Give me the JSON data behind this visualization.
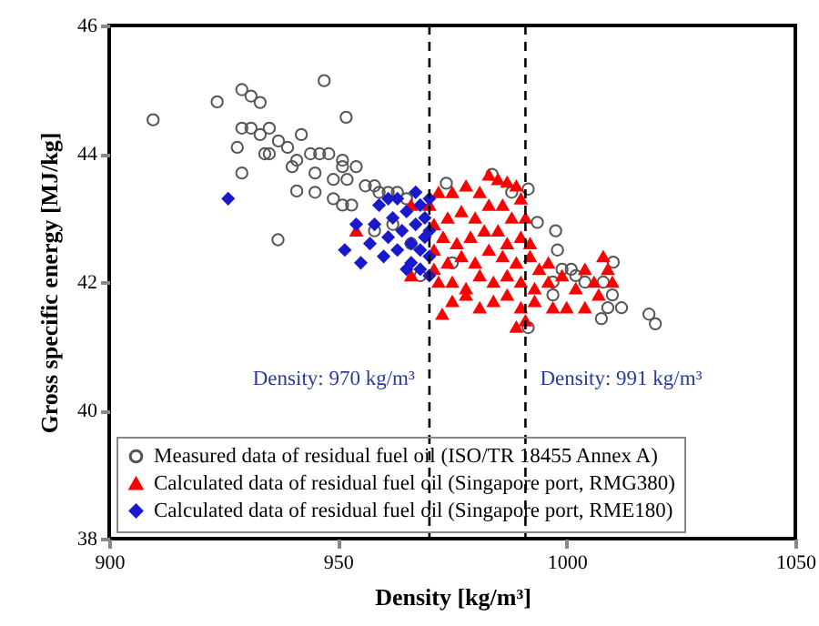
{
  "chart_data": {
    "type": "scatter",
    "xlabel": "Density [kg/m³]",
    "ylabel": "Gross specific energy [MJ/kg]",
    "xlim": [
      900,
      1050
    ],
    "xticks": [
      900,
      950,
      1000,
      1050
    ],
    "ylim": [
      38,
      46
    ],
    "yticks": [
      38,
      40,
      42,
      44,
      46
    ],
    "grid": false,
    "legend": "bottom",
    "ref_lines": [
      {
        "axis": "x",
        "value": 970,
        "label": "Density: 970 kg/m³",
        "line_style": "dashed",
        "color": "#000000"
      },
      {
        "axis": "x",
        "value": 991,
        "label": "Density: 991 kg/m³",
        "line_style": "dashed",
        "color": "#000000"
      }
    ],
    "series": [
      {
        "name": "Measured data of residual fuel oil (ISO/TR 18455 Annex A)",
        "color": "#555555",
        "marker": "circle",
        "x": [
          909.6,
          923.6,
          929,
          931,
          933,
          947,
          951.8,
          929,
          931,
          933,
          935,
          928,
          934,
          937,
          939,
          942,
          929,
          935,
          940,
          941,
          944,
          946,
          948,
          951,
          951,
          954,
          945,
          949,
          951,
          953,
          945,
          949,
          952,
          956,
          958,
          959,
          961,
          963,
          965,
          941,
          936.9,
          958,
          962,
          966,
          973.7,
          983.7,
          988,
          991.6,
          993.6,
          997.6,
          998,
          999,
          1001,
          1002,
          997,
          997,
          1004,
          1008,
          1010.2,
          1010,
          1009,
          1012,
          1007.6,
          1018,
          1019.4,
          991.6,
          975,
          968
        ],
        "values": [
          44.53,
          44.81,
          45.0,
          44.9,
          44.8,
          45.14,
          44.57,
          44.4,
          44.4,
          44.3,
          44.4,
          44.1,
          44.0,
          44.2,
          44.1,
          44.3,
          43.7,
          44.0,
          43.8,
          43.9,
          44.0,
          44.0,
          44.0,
          43.9,
          43.8,
          43.8,
          43.4,
          43.3,
          43.2,
          43.2,
          43.7,
          43.6,
          43.6,
          43.5,
          43.5,
          43.4,
          43.4,
          43.4,
          43.3,
          43.42,
          42.66,
          42.8,
          42.9,
          42.6,
          43.54,
          43.68,
          43.4,
          43.45,
          42.93,
          42.8,
          42.5,
          42.2,
          42.2,
          42.1,
          42.0,
          41.8,
          42.0,
          42.0,
          42.31,
          41.8,
          41.6,
          41.6,
          41.43,
          41.5,
          41.35,
          41.29,
          42.3,
          42.1
        ]
      },
      {
        "name": "Calculated data of residual fuel oil (Singapore port, RMG380)",
        "color": "#ff0000",
        "marker": "triangle",
        "x": [
          970,
          972,
          975,
          978,
          981,
          983,
          985,
          987,
          989,
          990,
          971,
          974,
          977,
          980,
          983,
          986,
          988,
          991,
          971,
          973,
          976,
          979,
          982,
          985,
          987,
          990,
          992,
          971,
          974,
          977,
          980,
          983,
          986,
          989,
          992,
          994,
          972,
          975,
          978,
          981,
          984,
          987,
          990,
          993,
          996,
          975,
          978,
          981,
          984,
          987,
          990,
          993,
          997,
          989,
          991,
          972.8,
          966,
          954,
          966,
          996,
          999,
          1000,
          1002,
          1004,
          1006,
          1008,
          1009,
          1010,
          1007,
          1004
        ],
        "values": [
          43.2,
          43.4,
          43.4,
          43.5,
          43.4,
          43.67,
          43.6,
          43.56,
          43.5,
          43.3,
          42.9,
          43.0,
          43.1,
          43.0,
          43.2,
          43.2,
          43.0,
          43.0,
          42.5,
          42.7,
          42.6,
          42.7,
          42.8,
          42.8,
          42.6,
          42.7,
          42.6,
          42.2,
          42.3,
          42.4,
          42.3,
          42.5,
          42.4,
          42.3,
          42.4,
          42.2,
          42.0,
          42.0,
          41.9,
          42.1,
          42.0,
          42.1,
          42.0,
          41.9,
          42.0,
          41.7,
          41.8,
          41.6,
          41.7,
          41.8,
          41.6,
          41.7,
          41.6,
          41.3,
          41.4,
          41.5,
          42.1,
          42.8,
          43.2,
          42.3,
          42.1,
          41.6,
          41.9,
          42.2,
          42.0,
          42.4,
          42.2,
          42.0,
          41.8,
          41.6
        ]
      },
      {
        "name": "Calculated data of residual fuel oil (Singapore port, RME180)",
        "color": "#1a1acc",
        "marker": "diamond",
        "x": [
          926,
          951.5,
          954,
          955,
          957,
          958,
          959,
          960,
          961,
          962,
          963,
          964,
          965,
          966,
          966,
          967,
          968,
          968,
          969,
          969,
          970,
          970,
          970,
          965,
          968,
          970,
          963,
          967,
          961
        ],
        "values": [
          43.3,
          42.5,
          42.9,
          42.3,
          42.6,
          42.9,
          43.2,
          42.4,
          42.7,
          43.0,
          42.5,
          42.8,
          43.1,
          42.3,
          42.6,
          42.9,
          43.2,
          42.5,
          42.7,
          43.0,
          42.4,
          42.8,
          43.3,
          42.2,
          42.2,
          42.1,
          43.3,
          43.4,
          43.3
        ]
      }
    ]
  }
}
